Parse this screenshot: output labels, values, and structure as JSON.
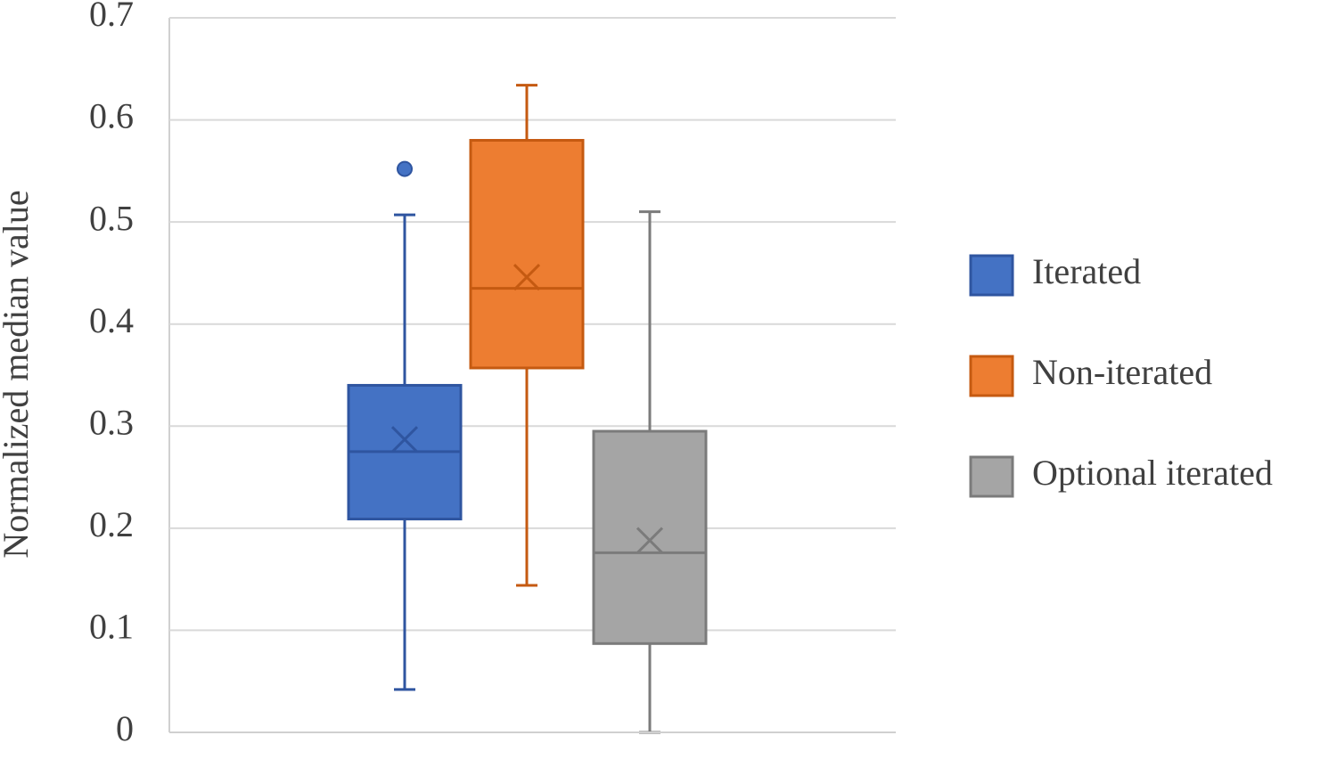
{
  "chart_data": {
    "type": "box",
    "y_label": "Normalized median value",
    "ylim": [
      0,
      0.7
    ],
    "yticks": [
      0,
      0.1,
      0.2,
      0.3,
      0.4,
      0.5,
      0.6,
      0.7
    ],
    "grid": true,
    "legend": "right",
    "series": [
      {
        "name": "Iterated",
        "color": "#4472c4",
        "edge_color": "#2f55a0",
        "whisker_low": 0.042,
        "q1": 0.209,
        "median": 0.275,
        "q3": 0.34,
        "whisker_high": 0.507,
        "mean": 0.287,
        "outliers": [
          0.552
        ]
      },
      {
        "name": "Non-iterated",
        "color": "#ed7d31",
        "edge_color": "#c55a11",
        "whisker_low": 0.144,
        "q1": 0.357,
        "median": 0.435,
        "q3": 0.58,
        "whisker_high": 0.634,
        "mean": 0.446,
        "outliers": []
      },
      {
        "name": "Optional iterated",
        "color": "#a5a5a5",
        "edge_color": "#7b7b7b",
        "whisker_low": 0.0,
        "q1": 0.087,
        "median": 0.176,
        "q3": 0.295,
        "whisker_high": 0.51,
        "mean": 0.188,
        "outliers": []
      }
    ]
  }
}
